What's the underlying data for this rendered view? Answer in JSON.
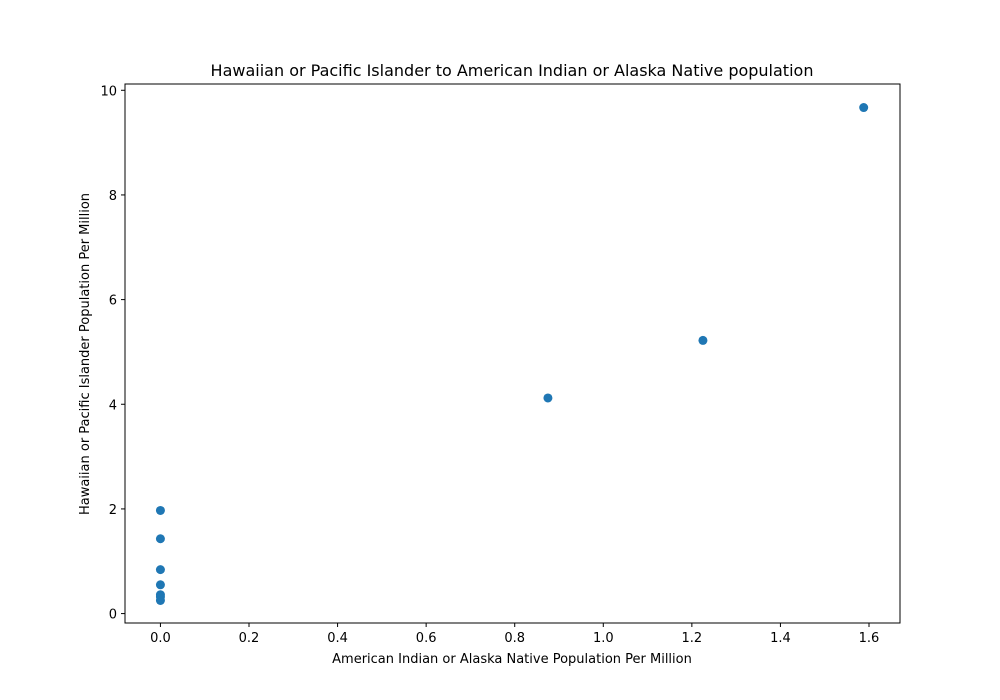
{
  "chart_data": {
    "type": "scatter",
    "title": "Hawaiian or Pacific Islander to American Indian or Alaska Native population",
    "xlabel": "American Indian or Alaska Native Population Per Million",
    "ylabel": "Hawaiian or Pacific Islander Population Per Million",
    "xlim": [
      -0.08,
      1.67
    ],
    "ylim": [
      -0.18,
      10.12
    ],
    "xticks": [
      0.0,
      0.2,
      0.4,
      0.6,
      0.8,
      1.0,
      1.2,
      1.4,
      1.6
    ],
    "xtick_labels": [
      "0.0",
      "0.2",
      "0.4",
      "0.6",
      "0.8",
      "1.0",
      "1.2",
      "1.4",
      "1.6"
    ],
    "yticks": [
      0,
      2,
      4,
      6,
      8,
      10
    ],
    "ytick_labels": [
      "0",
      "2",
      "4",
      "6",
      "8",
      "10"
    ],
    "grid": false,
    "marker_color": "#1f77b4",
    "points": [
      {
        "x": 0.0,
        "y": 1.97
      },
      {
        "x": 0.0,
        "y": 1.43
      },
      {
        "x": 0.0,
        "y": 0.84
      },
      {
        "x": 0.0,
        "y": 0.55
      },
      {
        "x": 0.0,
        "y": 0.36
      },
      {
        "x": 0.0,
        "y": 0.32
      },
      {
        "x": 0.0,
        "y": 0.25
      },
      {
        "x": 0.875,
        "y": 4.12
      },
      {
        "x": 1.225,
        "y": 5.22
      },
      {
        "x": 1.588,
        "y": 9.67
      }
    ]
  }
}
